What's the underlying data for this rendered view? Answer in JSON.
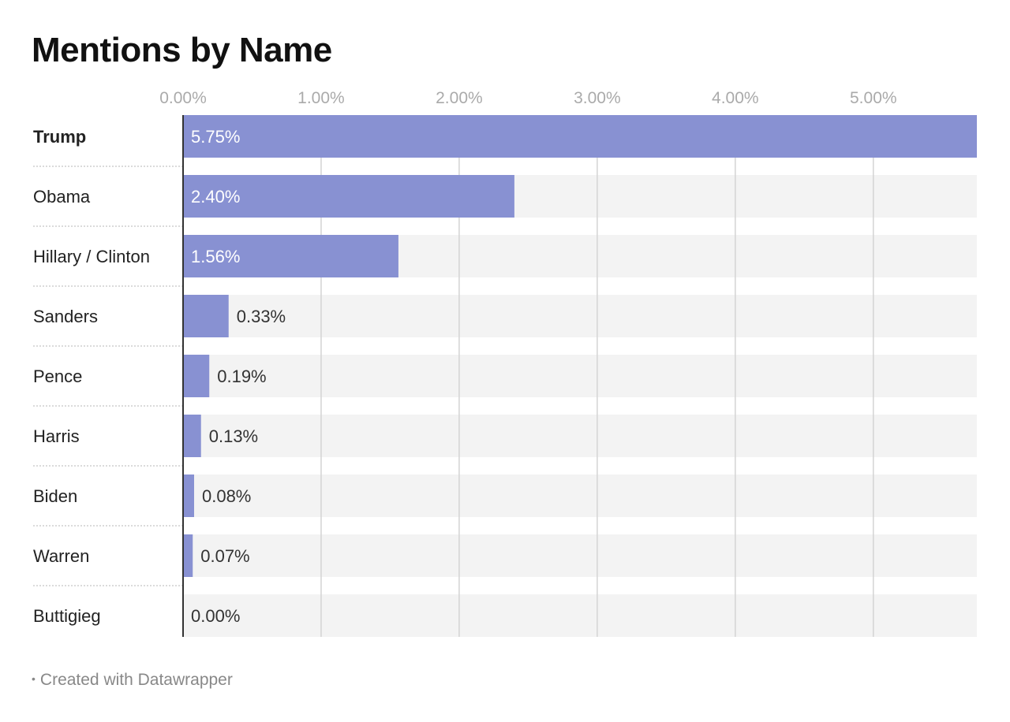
{
  "chart_data": {
    "type": "bar",
    "orientation": "horizontal",
    "title": "Mentions by Name",
    "categories": [
      "Trump",
      "Obama",
      "Hillary / Clinton",
      "Sanders",
      "Pence",
      "Harris",
      "Biden",
      "Warren",
      "Buttigieg"
    ],
    "values": [
      5.75,
      2.4,
      1.56,
      0.33,
      0.19,
      0.13,
      0.08,
      0.07,
      0.0
    ],
    "value_labels": [
      "5.75%",
      "2.40%",
      "1.56%",
      "0.33%",
      "0.19%",
      "0.13%",
      "0.08%",
      "0.07%",
      "0.00%"
    ],
    "highlighted_category": "Trump",
    "xlim": [
      0,
      5.75
    ],
    "x_ticks": [
      0,
      1,
      2,
      3,
      4,
      5
    ],
    "x_tick_labels": [
      "0.00%",
      "1.00%",
      "2.00%",
      "3.00%",
      "4.00%",
      "5.00%"
    ],
    "xlabel": "",
    "ylabel": "",
    "axis_position": "top",
    "grid": true,
    "colors": {
      "bar": "#8891d2",
      "track": "#f3f3f3",
      "grid": "#d4d4d4",
      "axis": "#333333",
      "tick_label": "#aaaaaa",
      "label_inside": "#ffffff",
      "label_outside": "#333333",
      "separator": "#cfcfcf"
    }
  },
  "footer": {
    "bullet": "•",
    "text": "Created with Datawrapper"
  }
}
